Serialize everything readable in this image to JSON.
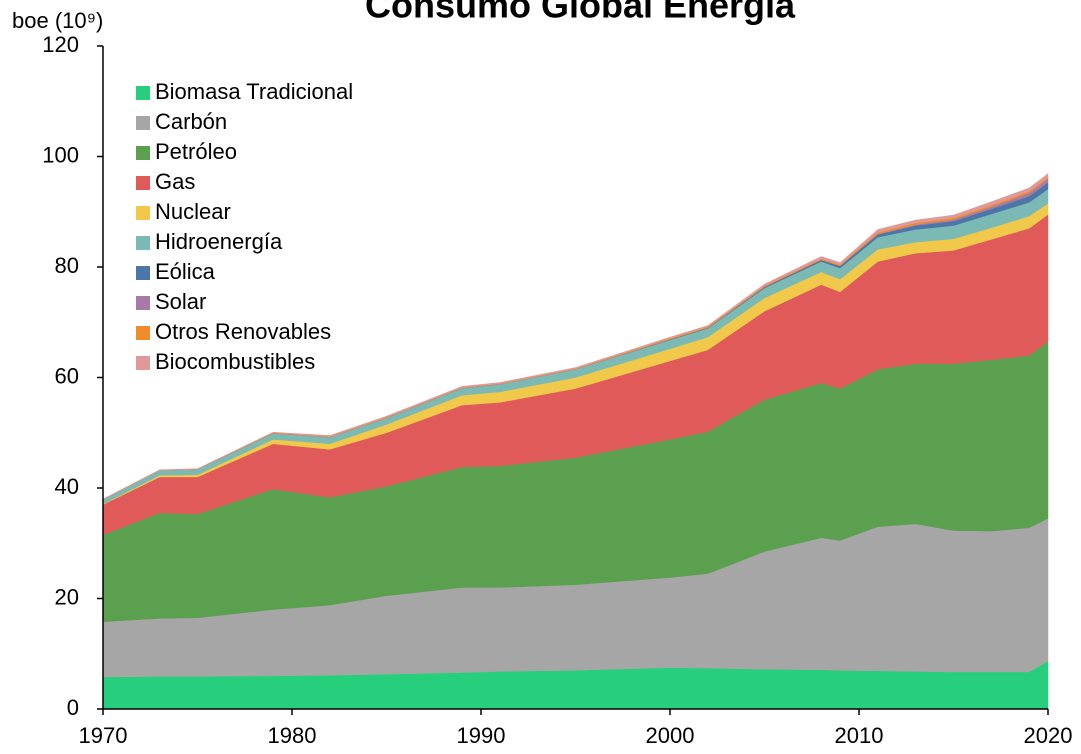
{
  "chart_data": {
    "type": "stacked_area",
    "title": "Consumo Global Energía",
    "y_label": "boe (10⁹)",
    "x": [
      1970,
      1973,
      1975,
      1979,
      1982,
      1985,
      1989,
      1991,
      1995,
      2000,
      2002,
      2005,
      2008,
      2009,
      2011,
      2013,
      2015,
      2017,
      2019,
      2020
    ],
    "xlim": [
      1970,
      2020
    ],
    "xticks": [
      1970,
      1980,
      1990,
      2000,
      2010,
      2020
    ],
    "ylim": [
      0,
      120
    ],
    "yticks": [
      0,
      20,
      40,
      60,
      80,
      100,
      120
    ],
    "grid": false,
    "legend": "upper left",
    "series": [
      {
        "name": "Biomasa Tradicional",
        "color": "#27cf7c",
        "values": [
          5.8,
          5.9,
          5.9,
          6.0,
          6.1,
          6.3,
          6.6,
          6.8,
          7.0,
          7.5,
          7.4,
          7.2,
          7.1,
          7.0,
          6.9,
          6.8,
          6.7,
          6.7,
          6.7,
          8.7
        ]
      },
      {
        "name": "Carbón",
        "color": "#a6a6a6",
        "values": [
          10.0,
          10.5,
          10.6,
          12.0,
          12.7,
          14.2,
          15.4,
          15.2,
          15.5,
          16.3,
          17.1,
          21.3,
          23.9,
          23.5,
          26.1,
          26.7,
          25.6,
          25.5,
          26.1,
          25.8
        ]
      },
      {
        "name": "Petróleo",
        "color": "#5aa04f",
        "values": [
          15.7,
          19.1,
          18.8,
          21.8,
          19.5,
          19.8,
          21.8,
          22.0,
          23.0,
          25.0,
          25.7,
          27.5,
          28.0,
          27.5,
          28.5,
          29.0,
          30.2,
          31.0,
          31.2,
          32.0
        ]
      },
      {
        "name": "Gas",
        "color": "#e05a5a",
        "values": [
          5.5,
          6.5,
          6.7,
          8.2,
          8.7,
          9.7,
          11.2,
          11.5,
          12.5,
          14.2,
          14.8,
          16.0,
          17.8,
          17.5,
          19.5,
          20.0,
          20.5,
          21.8,
          23.0,
          23.0
        ]
      },
      {
        "name": "Nuclear",
        "color": "#f1c94a",
        "values": [
          0.1,
          0.3,
          0.4,
          0.8,
          1.0,
          1.5,
          1.8,
          1.9,
          2.0,
          2.2,
          2.3,
          2.4,
          2.3,
          2.3,
          2.2,
          2.0,
          2.1,
          2.1,
          2.2,
          2.0
        ]
      },
      {
        "name": "Hidroenergía",
        "color": "#7ab9b4",
        "values": [
          0.8,
          0.9,
          1.0,
          1.1,
          1.2,
          1.2,
          1.3,
          1.4,
          1.5,
          1.6,
          1.6,
          1.8,
          1.9,
          2.0,
          2.2,
          2.3,
          2.4,
          2.5,
          2.5,
          2.6
        ]
      },
      {
        "name": "Eólica",
        "color": "#4b76a8",
        "values": [
          0,
          0,
          0,
          0,
          0,
          0,
          0,
          0,
          0,
          0.1,
          0.1,
          0.2,
          0.3,
          0.4,
          0.5,
          0.7,
          0.8,
          0.9,
          1.1,
          1.2
        ]
      },
      {
        "name": "Solar",
        "color": "#a87aa8",
        "values": [
          0,
          0,
          0,
          0,
          0,
          0,
          0,
          0,
          0,
          0,
          0,
          0,
          0,
          0,
          0.1,
          0.2,
          0.3,
          0.4,
          0.6,
          0.7
        ]
      },
      {
        "name": "Otros Renovables",
        "color": "#f08c2a",
        "values": [
          0,
          0,
          0,
          0.1,
          0.1,
          0.1,
          0.1,
          0.1,
          0.1,
          0.2,
          0.2,
          0.2,
          0.2,
          0.2,
          0.3,
          0.3,
          0.3,
          0.3,
          0.3,
          0.3
        ]
      },
      {
        "name": "Biocombustibles",
        "color": "#e0999a",
        "values": [
          0.1,
          0.1,
          0.1,
          0.1,
          0.2,
          0.2,
          0.2,
          0.2,
          0.2,
          0.2,
          0.2,
          0.3,
          0.4,
          0.4,
          0.5,
          0.5,
          0.5,
          0.6,
          0.6,
          0.6
        ]
      }
    ]
  }
}
